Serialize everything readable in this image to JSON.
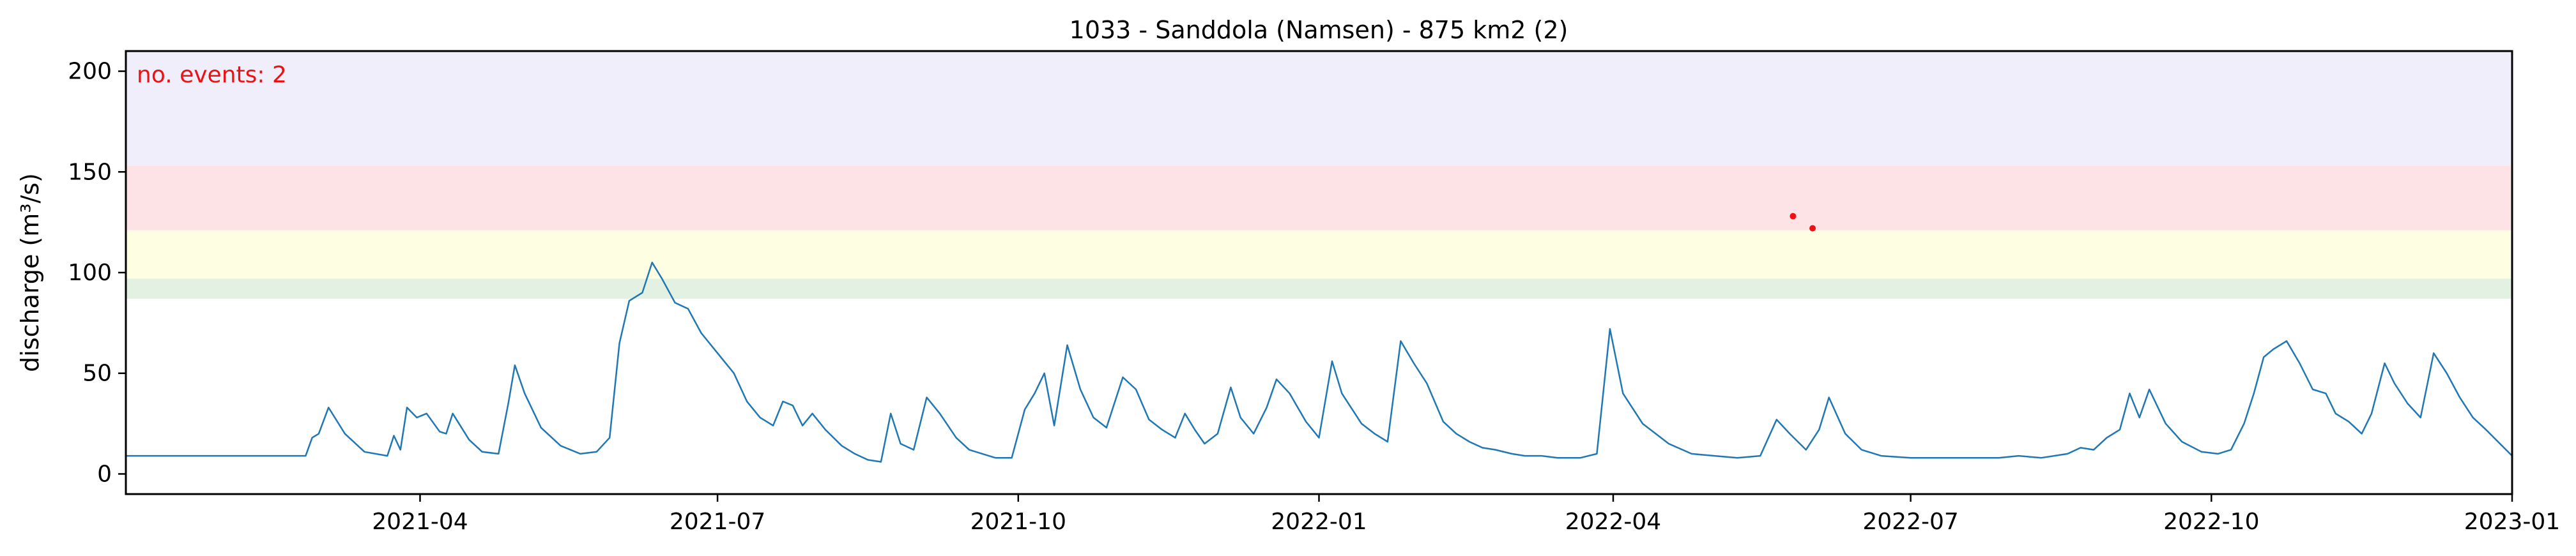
{
  "chart_data": {
    "type": "line",
    "title": "1033 - Sanddola (Namsen) - 875 km2 (2)",
    "xlabel": "",
    "ylabel": "discharge (m³/s)",
    "xlim": [
      "2021-01-01",
      "2023-01-01"
    ],
    "ylim": [
      -10,
      210
    ],
    "x_ticks": [
      "2021-04-01",
      "2021-07-01",
      "2021-10-01",
      "2022-01-01",
      "2022-04-01",
      "2022-07-01",
      "2022-10-01",
      "2023-01-01"
    ],
    "x_tick_labels": [
      "2021-04",
      "2021-07",
      "2021-10",
      "2022-01",
      "2022-04",
      "2022-07",
      "2022-10",
      "2023-01"
    ],
    "y_ticks": [
      0,
      50,
      100,
      150,
      200
    ],
    "y_tick_labels": [
      "0",
      "50",
      "100",
      "150",
      "200"
    ],
    "grid": false,
    "annotation": {
      "text": "no. events: 2",
      "color": "#ee1111"
    },
    "bands": [
      {
        "from": 87,
        "to": 97,
        "color": "#e3f1e3"
      },
      {
        "from": 97,
        "to": 121,
        "color": "#fefee3"
      },
      {
        "from": 121,
        "to": 153,
        "color": "#fde3e6"
      },
      {
        "from": 153,
        "to": 210,
        "color": "#f1eefb"
      }
    ],
    "series": [
      {
        "color": "#1f77b4",
        "points": [
          [
            "2021-01-01",
            9
          ],
          [
            "2021-02-15",
            9
          ],
          [
            "2021-02-25",
            9
          ],
          [
            "2021-02-27",
            18
          ],
          [
            "2021-03-01",
            20
          ],
          [
            "2021-03-04",
            33
          ],
          [
            "2021-03-09",
            20
          ],
          [
            "2021-03-15",
            11
          ],
          [
            "2021-03-22",
            9
          ],
          [
            "2021-03-24",
            19
          ],
          [
            "2021-03-26",
            12
          ],
          [
            "2021-03-28",
            33
          ],
          [
            "2021-03-31",
            28
          ],
          [
            "2021-04-03",
            30
          ],
          [
            "2021-04-07",
            21
          ],
          [
            "2021-04-09",
            20
          ],
          [
            "2021-04-11",
            30
          ],
          [
            "2021-04-16",
            17
          ],
          [
            "2021-04-20",
            11
          ],
          [
            "2021-04-25",
            10
          ],
          [
            "2021-04-28",
            35
          ],
          [
            "2021-04-30",
            54
          ],
          [
            "2021-05-03",
            40
          ],
          [
            "2021-05-08",
            23
          ],
          [
            "2021-05-14",
            14
          ],
          [
            "2021-05-20",
            10
          ],
          [
            "2021-05-25",
            11
          ],
          [
            "2021-05-29",
            18
          ],
          [
            "2021-06-01",
            65
          ],
          [
            "2021-06-04",
            86
          ],
          [
            "2021-06-08",
            90
          ],
          [
            "2021-06-11",
            105
          ],
          [
            "2021-06-14",
            97
          ],
          [
            "2021-06-18",
            85
          ],
          [
            "2021-06-22",
            82
          ],
          [
            "2021-06-26",
            70
          ],
          [
            "2021-07-01",
            60
          ],
          [
            "2021-07-06",
            50
          ],
          [
            "2021-07-10",
            36
          ],
          [
            "2021-07-14",
            28
          ],
          [
            "2021-07-18",
            24
          ],
          [
            "2021-07-21",
            36
          ],
          [
            "2021-07-24",
            34
          ],
          [
            "2021-07-27",
            24
          ],
          [
            "2021-07-30",
            30
          ],
          [
            "2021-08-03",
            22
          ],
          [
            "2021-08-08",
            14
          ],
          [
            "2021-08-12",
            10
          ],
          [
            "2021-08-16",
            7
          ],
          [
            "2021-08-20",
            6
          ],
          [
            "2021-08-23",
            30
          ],
          [
            "2021-08-26",
            15
          ],
          [
            "2021-08-30",
            12
          ],
          [
            "2021-09-03",
            38
          ],
          [
            "2021-09-07",
            30
          ],
          [
            "2021-09-12",
            18
          ],
          [
            "2021-09-16",
            12
          ],
          [
            "2021-09-20",
            10
          ],
          [
            "2021-09-24",
            8
          ],
          [
            "2021-09-29",
            8
          ],
          [
            "2021-10-03",
            32
          ],
          [
            "2021-10-06",
            40
          ],
          [
            "2021-10-09",
            50
          ],
          [
            "2021-10-12",
            24
          ],
          [
            "2021-10-16",
            64
          ],
          [
            "2021-10-20",
            42
          ],
          [
            "2021-10-24",
            28
          ],
          [
            "2021-10-28",
            23
          ],
          [
            "2021-11-02",
            48
          ],
          [
            "2021-11-06",
            42
          ],
          [
            "2021-11-10",
            27
          ],
          [
            "2021-11-14",
            22
          ],
          [
            "2021-11-18",
            18
          ],
          [
            "2021-11-21",
            30
          ],
          [
            "2021-11-24",
            22
          ],
          [
            "2021-11-27",
            15
          ],
          [
            "2021-12-01",
            20
          ],
          [
            "2021-12-05",
            43
          ],
          [
            "2021-12-08",
            28
          ],
          [
            "2021-12-12",
            20
          ],
          [
            "2021-12-16",
            33
          ],
          [
            "2021-12-19",
            47
          ],
          [
            "2021-12-23",
            40
          ],
          [
            "2021-12-28",
            26
          ],
          [
            "2022-01-01",
            18
          ],
          [
            "2022-01-05",
            56
          ],
          [
            "2022-01-08",
            40
          ],
          [
            "2022-01-14",
            25
          ],
          [
            "2022-01-18",
            20
          ],
          [
            "2022-01-22",
            16
          ],
          [
            "2022-01-26",
            66
          ],
          [
            "2022-01-30",
            55
          ],
          [
            "2022-02-03",
            45
          ],
          [
            "2022-02-08",
            26
          ],
          [
            "2022-02-12",
            20
          ],
          [
            "2022-02-16",
            16
          ],
          [
            "2022-02-20",
            13
          ],
          [
            "2022-02-24",
            12
          ],
          [
            "2022-03-01",
            10
          ],
          [
            "2022-03-05",
            9
          ],
          [
            "2022-03-10",
            9
          ],
          [
            "2022-03-15",
            8
          ],
          [
            "2022-03-22",
            8
          ],
          [
            "2022-03-27",
            10
          ],
          [
            "2022-03-31",
            72
          ],
          [
            "2022-04-04",
            40
          ],
          [
            "2022-04-10",
            25
          ],
          [
            "2022-04-18",
            15
          ],
          [
            "2022-04-25",
            10
          ],
          [
            "2022-05-02",
            9
          ],
          [
            "2022-05-09",
            8
          ],
          [
            "2022-05-16",
            9
          ],
          [
            "2022-05-21",
            27
          ],
          [
            "2022-05-25",
            20
          ],
          [
            "2022-05-30",
            12
          ],
          [
            "2022-06-03",
            22
          ],
          [
            "2022-06-06",
            38
          ],
          [
            "2022-06-11",
            20
          ],
          [
            "2022-06-16",
            12
          ],
          [
            "2022-06-22",
            9
          ],
          [
            "2022-07-01",
            8
          ],
          [
            "2022-07-10",
            8
          ],
          [
            "2022-07-20",
            8
          ],
          [
            "2022-07-28",
            8
          ],
          [
            "2022-08-03",
            9
          ],
          [
            "2022-08-10",
            8
          ],
          [
            "2022-08-18",
            10
          ],
          [
            "2022-08-22",
            13
          ],
          [
            "2022-08-26",
            12
          ],
          [
            "2022-08-30",
            18
          ],
          [
            "2022-09-03",
            22
          ],
          [
            "2022-09-06",
            40
          ],
          [
            "2022-09-09",
            28
          ],
          [
            "2022-09-12",
            42
          ],
          [
            "2022-09-17",
            25
          ],
          [
            "2022-09-22",
            16
          ],
          [
            "2022-09-28",
            11
          ],
          [
            "2022-10-03",
            10
          ],
          [
            "2022-10-07",
            12
          ],
          [
            "2022-10-11",
            25
          ],
          [
            "2022-10-14",
            40
          ],
          [
            "2022-10-17",
            58
          ],
          [
            "2022-10-20",
            62
          ],
          [
            "2022-10-24",
            66
          ],
          [
            "2022-10-28",
            55
          ],
          [
            "2022-11-01",
            42
          ],
          [
            "2022-11-05",
            40
          ],
          [
            "2022-11-08",
            30
          ],
          [
            "2022-11-12",
            26
          ],
          [
            "2022-11-16",
            20
          ],
          [
            "2022-11-19",
            30
          ],
          [
            "2022-11-23",
            55
          ],
          [
            "2022-11-26",
            45
          ],
          [
            "2022-11-30",
            35
          ],
          [
            "2022-12-04",
            28
          ],
          [
            "2022-12-08",
            60
          ],
          [
            "2022-12-12",
            50
          ],
          [
            "2022-12-16",
            38
          ],
          [
            "2022-12-20",
            28
          ],
          [
            "2022-12-24",
            22
          ],
          [
            "2023-01-01",
            9
          ]
        ]
      }
    ],
    "event_markers": [
      {
        "x": "2022-05-26",
        "y": 128,
        "color": "#ee1111"
      },
      {
        "x": "2022-06-01",
        "y": 122,
        "color": "#ee1111"
      }
    ]
  }
}
